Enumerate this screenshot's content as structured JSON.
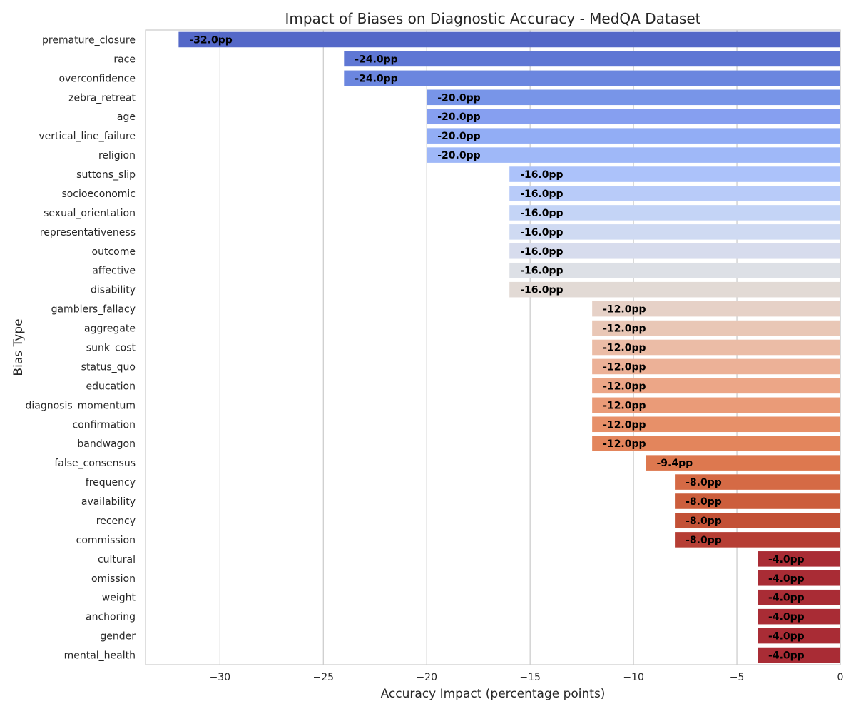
{
  "chart_data": {
    "type": "bar",
    "orientation": "horizontal",
    "title": "Impact of Biases on Diagnostic Accuracy - MedQA Dataset",
    "xlabel": "Accuracy Impact (percentage points)",
    "ylabel": "Bias Type",
    "xlim": [
      -33.6,
      0
    ],
    "xticks": [
      -30,
      -25,
      -20,
      -15,
      -10,
      -5,
      0
    ],
    "xtick_labels": [
      "−30",
      "−25",
      "−20",
      "−15",
      "−10",
      "−5",
      "0"
    ],
    "grid": "vertical",
    "colormap": "coolwarm",
    "categories": [
      "premature_closure",
      "race",
      "overconfidence",
      "zebra_retreat",
      "age",
      "vertical_line_failure",
      "religion",
      "suttons_slip",
      "socioeconomic",
      "sexual_orientation",
      "representativeness",
      "outcome",
      "affective",
      "disability",
      "gamblers_fallacy",
      "aggregate",
      "sunk_cost",
      "status_quo",
      "education",
      "diagnosis_momentum",
      "confirmation",
      "bandwagon",
      "false_consensus",
      "frequency",
      "availability",
      "recency",
      "commission",
      "cultural",
      "omission",
      "weight",
      "anchoring",
      "gender",
      "mental_health"
    ],
    "values": [
      -32.0,
      -24.0,
      -24.0,
      -20.0,
      -20.0,
      -20.0,
      -20.0,
      -16.0,
      -16.0,
      -16.0,
      -16.0,
      -16.0,
      -16.0,
      -16.0,
      -12.0,
      -12.0,
      -12.0,
      -12.0,
      -12.0,
      -12.0,
      -12.0,
      -12.0,
      -9.4,
      -8.0,
      -8.0,
      -8.0,
      -8.0,
      -4.0,
      -4.0,
      -4.0,
      -4.0,
      -4.0,
      -4.0
    ],
    "data_labels": [
      "-32.0pp",
      "-24.0pp",
      "-24.0pp",
      "-20.0pp",
      "-20.0pp",
      "-20.0pp",
      "-20.0pp",
      "-16.0pp",
      "-16.0pp",
      "-16.0pp",
      "-16.0pp",
      "-16.0pp",
      "-16.0pp",
      "-16.0pp",
      "-12.0pp",
      "-12.0pp",
      "-12.0pp",
      "-12.0pp",
      "-12.0pp",
      "-12.0pp",
      "-12.0pp",
      "-12.0pp",
      "-9.4pp",
      "-8.0pp",
      "-8.0pp",
      "-8.0pp",
      "-8.0pp",
      "-4.0pp",
      "-4.0pp",
      "-4.0pp",
      "-4.0pp",
      "-4.0pp",
      "-4.0pp"
    ],
    "colors": [
      "#5468c8",
      "#5f77d4",
      "#6b86df",
      "#7895e8",
      "#869ff0",
      "#92adf5",
      "#9fb8f8",
      "#acc2fa",
      "#b8cbf9",
      "#c4d4f6",
      "#cfdaf2",
      "#d7dced",
      "#dde0e6",
      "#e2dad5",
      "#e6d1c7",
      "#e9c7b6",
      "#ebbca6",
      "#ecb197",
      "#eca687",
      "#ea9b78",
      "#e79069",
      "#e3855c",
      "#dd784f",
      "#d56a45",
      "#cc5e3c",
      "#c35136",
      "#b63e34",
      "#a92c35",
      "#a92c35",
      "#a92c35",
      "#a92c35",
      "#a92c35",
      "#a92c35"
    ]
  }
}
